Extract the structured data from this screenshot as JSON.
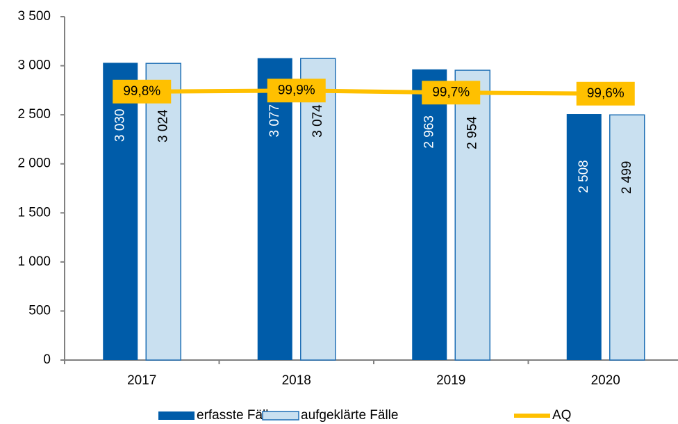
{
  "chart_data": {
    "type": "bar",
    "categories": [
      "2017",
      "2018",
      "2019",
      "2020"
    ],
    "series": [
      {
        "name": "erfasste Fälle",
        "color": "#005ca9",
        "values": [
          3030,
          3077,
          2963,
          2508
        ],
        "value_labels": [
          "3 030",
          "3 077",
          "2 963",
          "2 508"
        ]
      },
      {
        "name": "aufgeklärte Fälle",
        "color": "#c9e0f0",
        "values": [
          3024,
          3074,
          2954,
          2499
        ],
        "value_labels": [
          "3 024",
          "3 074",
          "2 954",
          "2 499"
        ]
      },
      {
        "name": "AQ",
        "type": "line",
        "axis": "y2",
        "color": "#ffc000",
        "values": [
          99.8,
          99.9,
          99.7,
          99.6
        ],
        "value_labels": [
          "99,8%",
          "99,9%",
          "99,7%",
          "99,6%"
        ]
      }
    ],
    "ylim": [
      0,
      3500
    ],
    "yticks": [
      0,
      500,
      {
        "value": 1000,
        "label": "1 000"
      },
      {
        "value": 1500,
        "label": "1 500"
      },
      {
        "value": 2000,
        "label": "2 000"
      },
      {
        "value": 2500,
        "label": "2 500"
      },
      {
        "value": 3000,
        "label": "3 000"
      },
      {
        "value": 3500,
        "label": "3 500"
      }
    ],
    "y2lim": [
      74,
      107
    ],
    "legend": "bottom"
  }
}
